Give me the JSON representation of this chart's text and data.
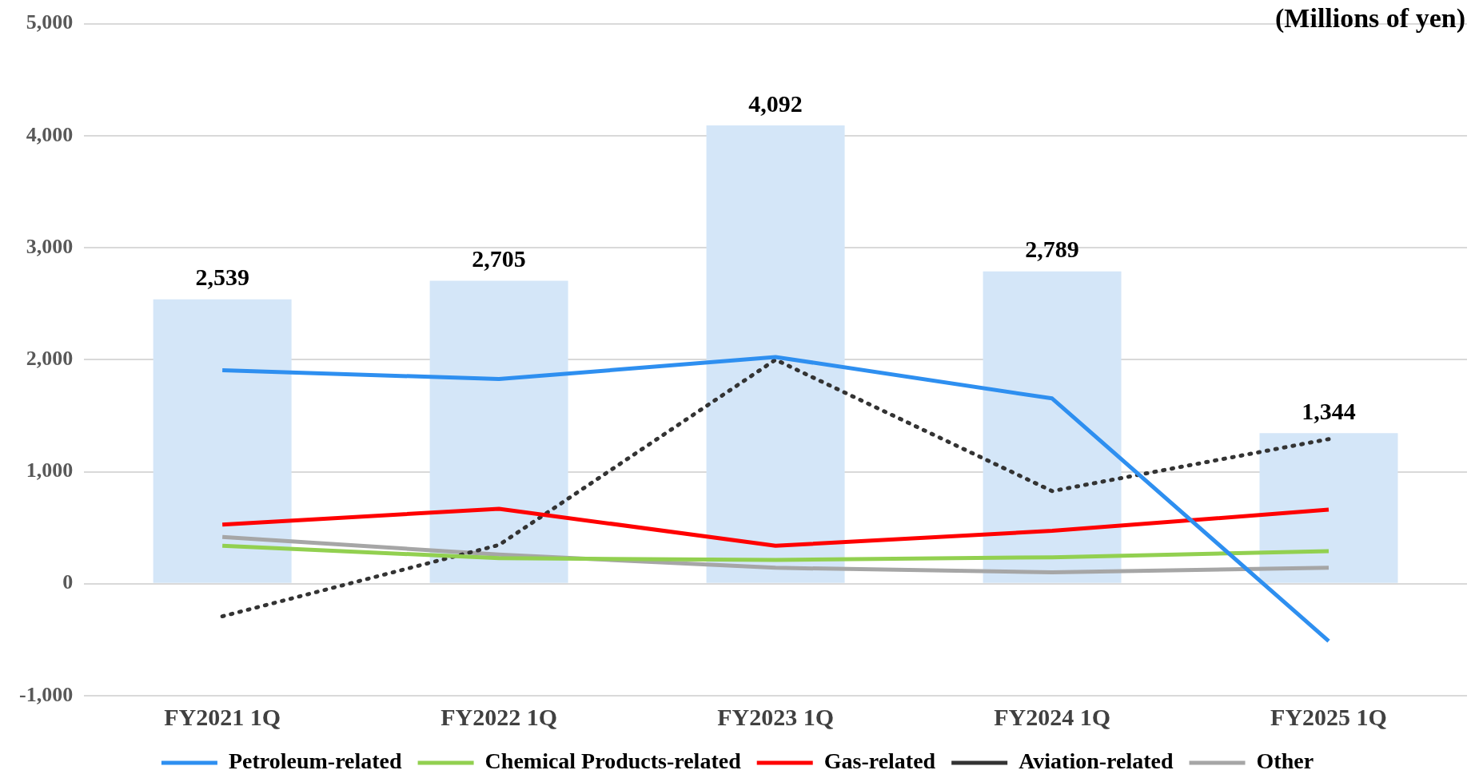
{
  "chart_data": {
    "type": "bar",
    "ylabel": "(Millions of yen)",
    "categories": [
      "FY2021 1Q",
      "FY2022 1Q",
      "FY2023 1Q",
      "FY2024 1Q",
      "FY2025 1Q"
    ],
    "series": [
      {
        "type": "bar",
        "color": "#d4e6f8",
        "values": [
          2539,
          2705,
          4092,
          2789,
          1344
        ],
        "value_labels": [
          "2,539",
          "2,705",
          "4,092",
          "2,789",
          "1,344"
        ]
      },
      {
        "type": "line",
        "name": "Petroleum-related",
        "color": "#2e8ff0",
        "values": [
          1906,
          1827,
          2024,
          1654,
          -512
        ]
      },
      {
        "type": "line",
        "name": "Chemical Products-related",
        "color": "#92d050",
        "values": [
          339,
          228,
          213,
          236,
          291
        ]
      },
      {
        "type": "line",
        "name": "Gas-related",
        "color": "#ff0000",
        "values": [
          528,
          669,
          339,
          472,
          661
        ]
      },
      {
        "type": "line",
        "name": "Aviation-related",
        "color": "#333333",
        "line_style": "dotted",
        "values": [
          -291,
          346,
          2000,
          827,
          1291
        ]
      },
      {
        "type": "line",
        "name": "Other",
        "color": "#a6a6a6",
        "values": [
          417,
          260,
          142,
          102,
          142
        ]
      }
    ],
    "ylim": [
      -1000,
      5000
    ],
    "yticks": [
      {
        "value": -1000,
        "label": "-1,000"
      },
      0,
      {
        "value": 1000,
        "label": "1,000"
      },
      {
        "value": 2000,
        "label": "2,000"
      },
      {
        "value": 3000,
        "label": "3,000"
      },
      {
        "value": 4000,
        "label": "4,000"
      },
      {
        "value": 5000,
        "label": "5,000"
      }
    ],
    "grid": "y",
    "legend": "bottom",
    "marker": "none"
  }
}
